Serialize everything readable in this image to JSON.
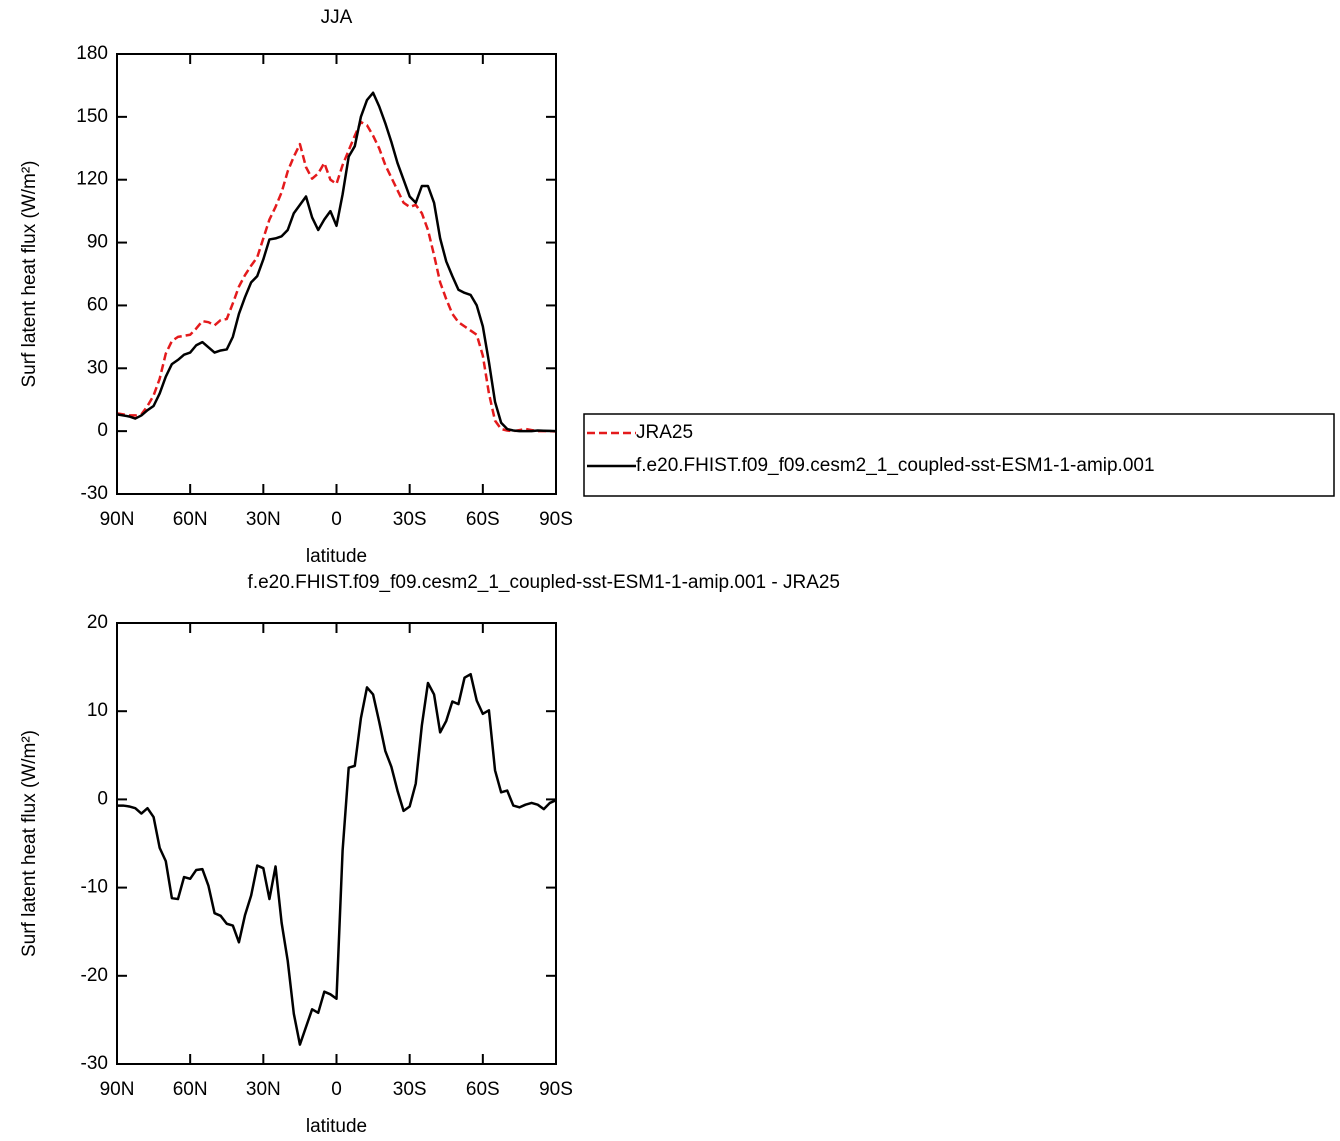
{
  "chart_data": [
    {
      "type": "line",
      "title": "JJA",
      "xlabel": "latitude",
      "ylabel": "Surf latent heat flux (W/m²)",
      "x": [
        90,
        87.5,
        85,
        82.5,
        80,
        77.5,
        75,
        72.5,
        70,
        67.5,
        65,
        62.5,
        60,
        57.5,
        55,
        52.5,
        50,
        47.5,
        45,
        42.5,
        40,
        37.5,
        35,
        32.5,
        30,
        27.5,
        25,
        22.5,
        20,
        17.5,
        15,
        12.5,
        10,
        7.5,
        5,
        2.5,
        0,
        -2.5,
        -5,
        -7.5,
        -10,
        -12.5,
        -15,
        -17.5,
        -20,
        -22.5,
        -25,
        -27.5,
        -30,
        -32.5,
        -35,
        -37.5,
        -40,
        -42.5,
        -45,
        -47.5,
        -50,
        -52.5,
        -55,
        -57.5,
        -60,
        -62.5,
        -65,
        -67.5,
        -70,
        -72.5,
        -75,
        -77.5,
        -80,
        -82.5,
        -85,
        -87.5,
        -90
      ],
      "series": [
        {
          "name": "JRA25",
          "color": "#e41a1c",
          "linestyle": "dashed",
          "values": [
            8.5,
            8,
            7.5,
            7.5,
            8,
            12,
            17,
            25,
            37,
            43,
            45,
            45.5,
            46,
            49,
            52.5,
            52,
            50.5,
            53,
            53.5,
            61,
            69,
            74.5,
            79,
            83,
            92,
            101,
            107,
            114,
            124,
            131,
            137,
            126,
            120.5,
            123,
            128,
            120,
            118,
            127,
            134,
            141,
            147.5,
            146,
            141,
            135,
            127,
            121,
            115,
            109,
            107,
            108,
            104,
            96,
            84,
            71,
            63,
            56,
            52,
            50,
            48,
            46,
            36,
            18,
            5,
            1,
            0.3,
            0,
            0.5,
            1,
            0.5,
            0,
            0,
            0,
            -0.2
          ]
        },
        {
          "name": "f.e20.FHIST.f09_f09.cesm2_1_coupled-sst-ESM1-1-amip.001",
          "color": "#000000",
          "linestyle": "solid",
          "values": [
            8,
            7.5,
            7,
            6,
            7.5,
            10,
            12,
            18,
            26,
            32,
            34,
            36.5,
            37.5,
            41,
            42.5,
            40,
            37.5,
            38.5,
            39,
            45,
            56,
            64,
            71,
            74,
            82,
            91.5,
            92,
            93,
            96,
            104,
            108,
            112,
            102,
            96,
            101,
            105,
            98,
            113,
            131,
            136,
            150,
            158,
            161.5,
            155,
            147,
            138,
            128,
            120,
            112,
            109,
            117,
            117,
            109,
            92,
            81,
            74,
            67.5,
            66,
            65,
            60,
            50,
            33,
            14,
            4,
            1,
            0.3,
            0,
            0,
            0,
            0.3,
            0.2,
            0.1,
            0
          ]
        }
      ],
      "xlim": [
        90,
        -90
      ],
      "xticks": [
        {
          "value": 90,
          "label": "90N"
        },
        {
          "value": 60,
          "label": "60N"
        },
        {
          "value": 30,
          "label": "30N"
        },
        0,
        {
          "value": -30,
          "label": "30S"
        },
        {
          "value": -60,
          "label": "60S"
        },
        {
          "value": -90,
          "label": "90S"
        }
      ],
      "ylim": [
        -30,
        180
      ],
      "yticks": [
        -30,
        0,
        30,
        60,
        90,
        120,
        150,
        180
      ],
      "legend": "right"
    },
    {
      "type": "line",
      "title": "f.e20.FHIST.f09_f09.cesm2_1_coupled-sst-ESM1-1-amip.001 - JRA25",
      "xlabel": "latitude",
      "ylabel": "Surf latent heat flux (W/m²)",
      "x": [
        90,
        87.5,
        85,
        82.5,
        80,
        77.5,
        75,
        72.5,
        70,
        67.5,
        65,
        62.5,
        60,
        57.5,
        55,
        52.5,
        50,
        47.5,
        45,
        42.5,
        40,
        37.5,
        35,
        32.5,
        30,
        27.5,
        25,
        22.5,
        20,
        17.5,
        15,
        12.5,
        10,
        7.5,
        5,
        2.5,
        0,
        -2.5,
        -5,
        -7.5,
        -10,
        -12.5,
        -15,
        -17.5,
        -20,
        -22.5,
        -25,
        -27.5,
        -30,
        -32.5,
        -35,
        -37.5,
        -40,
        -42.5,
        -45,
        -47.5,
        -50,
        -52.5,
        -55,
        -57.5,
        -60,
        -62.5,
        -65,
        -67.5,
        -70,
        -72.5,
        -75,
        -77.5,
        -80,
        -82.5,
        -85,
        -87.5,
        -90
      ],
      "series": [
        {
          "color": "#000000",
          "linestyle": "solid",
          "values": [
            -0.7,
            -0.7,
            -0.8,
            -1.0,
            -1.6,
            -1.0,
            -2.0,
            -5.5,
            -7.0,
            -11.2,
            -11.3,
            -8.8,
            -9.0,
            -8.0,
            -7.9,
            -9.8,
            -12.9,
            -13.2,
            -14.1,
            -14.3,
            -16.2,
            -13.1,
            -10.9,
            -7.5,
            -7.8,
            -11.3,
            -7.6,
            -14.0,
            -18.3,
            -24.3,
            -27.8,
            -25.8,
            -23.8,
            -24.2,
            -21.8,
            -22.1,
            -22.6,
            -5.8,
            3.6,
            3.8,
            9.2,
            12.7,
            11.9,
            8.8,
            5.5,
            3.7,
            1.0,
            -1.3,
            -0.8,
            1.8,
            8.4,
            13.2,
            11.9,
            7.6,
            8.9,
            11.1,
            10.8,
            13.8,
            14.2,
            11.2,
            9.7,
            10.1,
            3.3,
            0.8,
            1.0,
            -0.7,
            -0.9,
            -0.6,
            -0.4,
            -0.6,
            -1.1,
            -0.4,
            -0.1
          ]
        }
      ],
      "xlim": [
        90,
        -90
      ],
      "xticks": [
        {
          "value": 90,
          "label": "90N"
        },
        {
          "value": 60,
          "label": "60N"
        },
        {
          "value": 30,
          "label": "30N"
        },
        0,
        {
          "value": -30,
          "label": "30S"
        },
        {
          "value": -60,
          "label": "60S"
        },
        {
          "value": -90,
          "label": "90S"
        }
      ],
      "ylim": [
        -30,
        20
      ],
      "yticks": [
        -30,
        -20,
        -10,
        0,
        10,
        20
      ]
    }
  ]
}
